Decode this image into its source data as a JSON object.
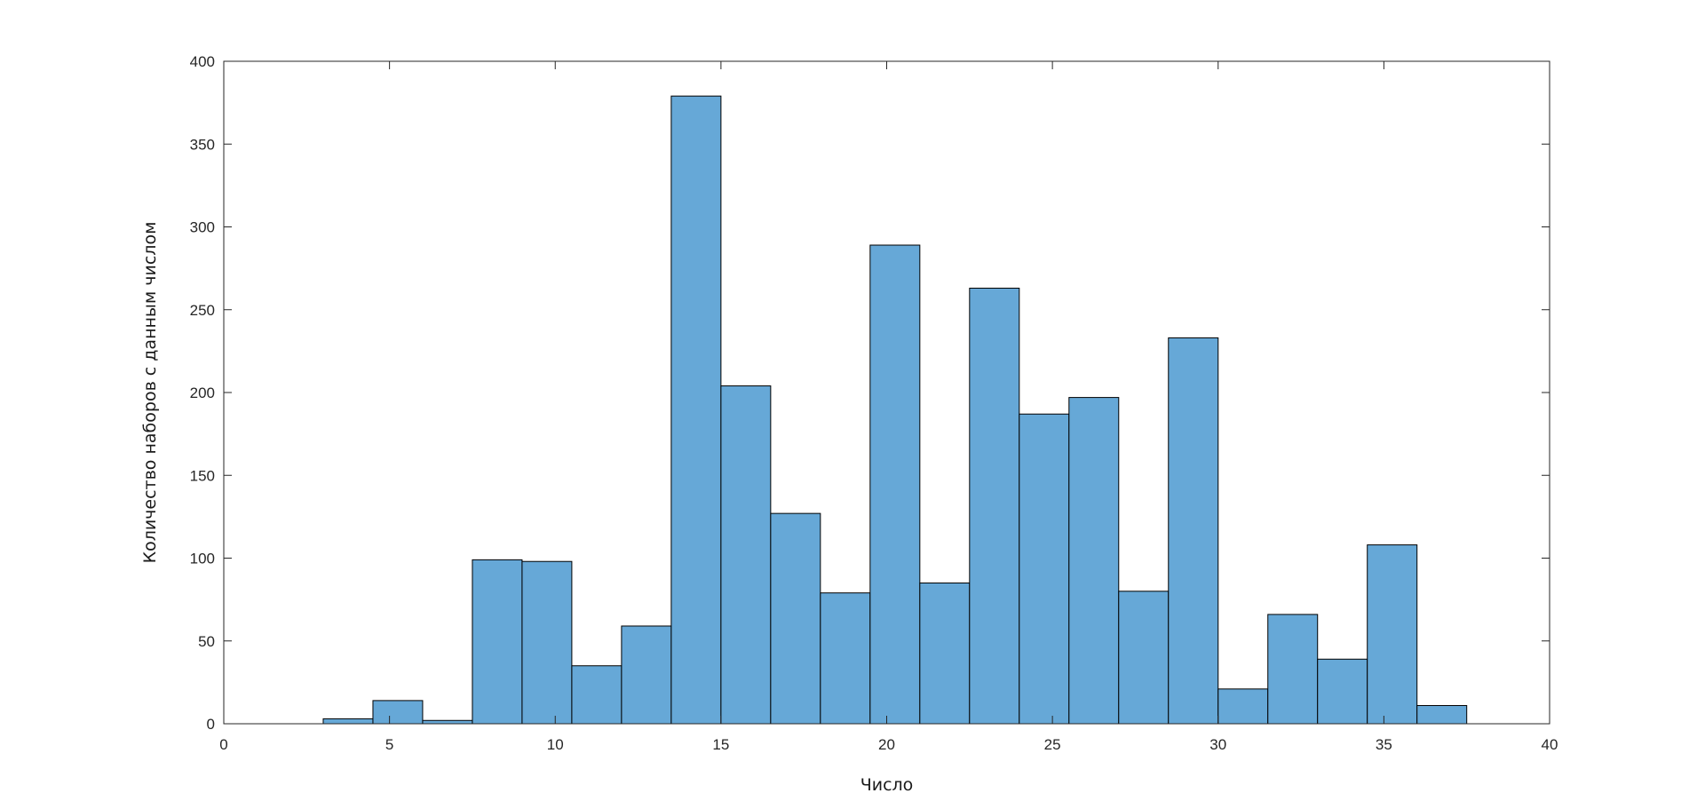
{
  "chart_data": {
    "type": "bar",
    "subtype": "histogram",
    "xlabel": "Число",
    "ylabel": "Количество наборов с данным числом",
    "xlim": [
      0,
      40
    ],
    "ylim": [
      0,
      400
    ],
    "xticks": [
      0,
      5,
      10,
      15,
      20,
      25,
      30,
      35,
      40
    ],
    "yticks": [
      0,
      50,
      100,
      150,
      200,
      250,
      300,
      350,
      400
    ],
    "bin_width": 1.5,
    "bin_start": 3,
    "bins": [
      {
        "x0": 3.0,
        "x1": 4.5,
        "value": 3
      },
      {
        "x0": 4.5,
        "x1": 6.0,
        "value": 14
      },
      {
        "x0": 6.0,
        "x1": 7.5,
        "value": 2
      },
      {
        "x0": 7.5,
        "x1": 9.0,
        "value": 99
      },
      {
        "x0": 9.0,
        "x1": 10.5,
        "value": 98
      },
      {
        "x0": 10.5,
        "x1": 12.0,
        "value": 35
      },
      {
        "x0": 12.0,
        "x1": 13.5,
        "value": 59
      },
      {
        "x0": 13.5,
        "x1": 15.0,
        "value": 379
      },
      {
        "x0": 15.0,
        "x1": 16.5,
        "value": 204
      },
      {
        "x0": 16.5,
        "x1": 18.0,
        "value": 127
      },
      {
        "x0": 18.0,
        "x1": 19.5,
        "value": 79
      },
      {
        "x0": 19.5,
        "x1": 21.0,
        "value": 289
      },
      {
        "x0": 21.0,
        "x1": 22.5,
        "value": 85
      },
      {
        "x0": 22.5,
        "x1": 24.0,
        "value": 263
      },
      {
        "x0": 24.0,
        "x1": 25.5,
        "value": 187
      },
      {
        "x0": 25.5,
        "x1": 27.0,
        "value": 197
      },
      {
        "x0": 27.0,
        "x1": 28.5,
        "value": 80
      },
      {
        "x0": 28.5,
        "x1": 30.0,
        "value": 233
      },
      {
        "x0": 30.0,
        "x1": 31.5,
        "value": 21
      },
      {
        "x0": 31.5,
        "x1": 33.0,
        "value": 66
      },
      {
        "x0": 33.0,
        "x1": 34.5,
        "value": 39
      },
      {
        "x0": 34.5,
        "x1": 36.0,
        "value": 108
      },
      {
        "x0": 36.0,
        "x1": 37.5,
        "value": 11
      }
    ],
    "grid": false,
    "bar_color": "#66a8d7",
    "edge_color": "#000000"
  }
}
